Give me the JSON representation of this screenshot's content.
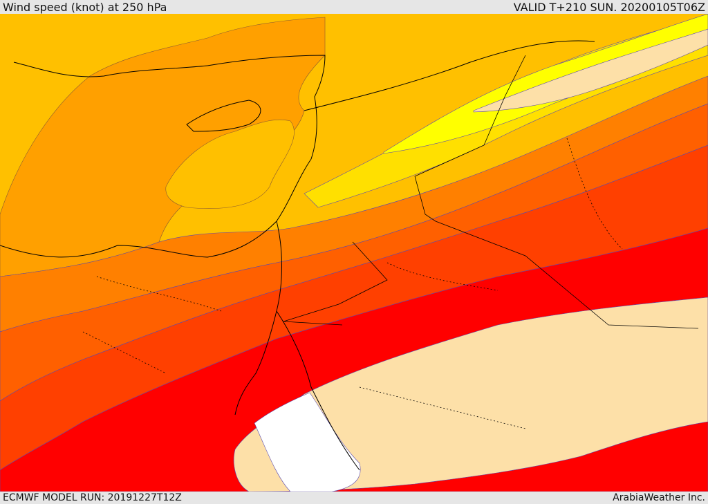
{
  "header": {
    "title": "Wind speed (knot) at 250 hPa",
    "valid": "VALID T+210 SUN. 20200105T06Z"
  },
  "footer": {
    "model_run": "ECMWF MODEL RUN: 20191227T12Z",
    "credit": "ArabiaWeather Inc."
  },
  "colors": {
    "white": "#ffffff",
    "pale": "#fde0a8",
    "yellow": "#ffff00",
    "lightyellow": "#ffe000",
    "amber": "#ffc000",
    "orange": "#ffa000",
    "darkorange": "#ff8000",
    "redorange": "#ff6000",
    "orangered": "#ff4000",
    "red": "#ff0000",
    "contour": "#5a4ab0",
    "border": "#000000"
  }
}
